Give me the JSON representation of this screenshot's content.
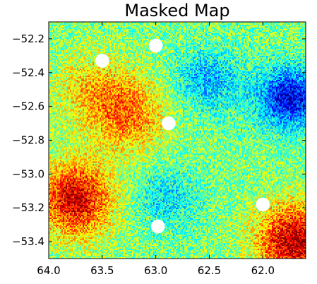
{
  "chart_data": {
    "type": "heatmap",
    "title": "Masked Map",
    "xlabel": "",
    "ylabel": "",
    "xlim": [
      64.0,
      61.6
    ],
    "ylim": [
      -53.5,
      -52.1
    ],
    "x_ticks": [
      {
        "value": 64.0,
        "label": "64.0"
      },
      {
        "value": 63.5,
        "label": "63.5"
      },
      {
        "value": 63.0,
        "label": "63.0"
      },
      {
        "value": 62.5,
        "label": "62.5"
      },
      {
        "value": 62.0,
        "label": "62.0"
      }
    ],
    "y_ticks": [
      {
        "value": -52.2,
        "label": "−52.2"
      },
      {
        "value": -52.4,
        "label": "−52.4"
      },
      {
        "value": -52.6,
        "label": "−52.6"
      },
      {
        "value": -52.8,
        "label": "−52.8"
      },
      {
        "value": -53.0,
        "label": "−53.0"
      },
      {
        "value": -53.2,
        "label": "−53.2"
      },
      {
        "value": -53.4,
        "label": "−53.4"
      }
    ],
    "colormap": "jet",
    "colormap_stops": [
      "#00007f",
      "#0000ff",
      "#007fff",
      "#00ffff",
      "#7fff7f",
      "#ffff00",
      "#ff7f00",
      "#ff0000",
      "#7f0000"
    ],
    "hotspots": [
      {
        "x": 63.25,
        "y": -52.65,
        "value": 0.75
      },
      {
        "x": 63.75,
        "y": -53.15,
        "value": 0.92
      },
      {
        "x": 61.7,
        "y": -53.4,
        "value": 0.95
      },
      {
        "x": 63.6,
        "y": -52.5,
        "value": 0.65
      }
    ],
    "coldspots": [
      {
        "x": 61.75,
        "y": -52.55,
        "value": 0.1
      },
      {
        "x": 62.5,
        "y": -52.45,
        "value": 0.3
      },
      {
        "x": 62.9,
        "y": -53.15,
        "value": 0.35
      }
    ],
    "masks": [
      {
        "x": 63.5,
        "y": -52.33,
        "radius": 0.065
      },
      {
        "x": 63.0,
        "y": -52.24,
        "radius": 0.065
      },
      {
        "x": 62.88,
        "y": -52.7,
        "radius": 0.065
      },
      {
        "x": 62.98,
        "y": -53.31,
        "radius": 0.065
      },
      {
        "x": 62.0,
        "y": -53.18,
        "radius": 0.065
      }
    ]
  }
}
